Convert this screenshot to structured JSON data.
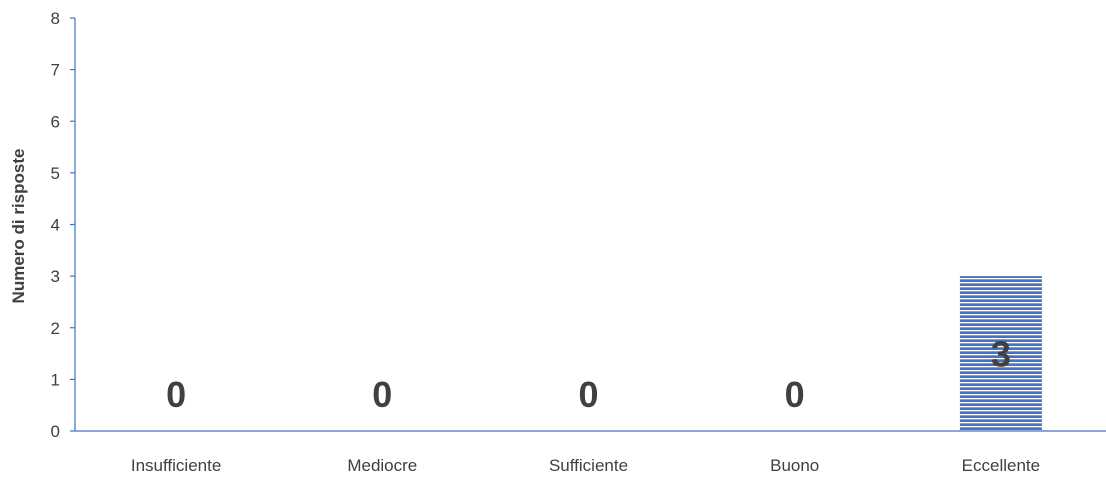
{
  "chart_data": {
    "type": "bar",
    "title": "",
    "xlabel": "",
    "ylabel": "Numero di risposte",
    "categories": [
      "Insufficiente",
      "Mediocre",
      "Sufficiente",
      "Buono",
      "Eccellente"
    ],
    "values": [
      0,
      0,
      0,
      0,
      3
    ],
    "data_labels": [
      "0",
      "0",
      "0",
      "0",
      "3"
    ],
    "ylim": [
      0,
      8
    ],
    "yticks": [
      "0",
      "1",
      "2",
      "3",
      "4",
      "5",
      "6",
      "7",
      "8"
    ],
    "grid": false,
    "legend": "none",
    "colors": {
      "bar": "#4472C4",
      "bar_stripe": "#ffffff",
      "axis": "#4472C4",
      "text": "#404040"
    }
  }
}
